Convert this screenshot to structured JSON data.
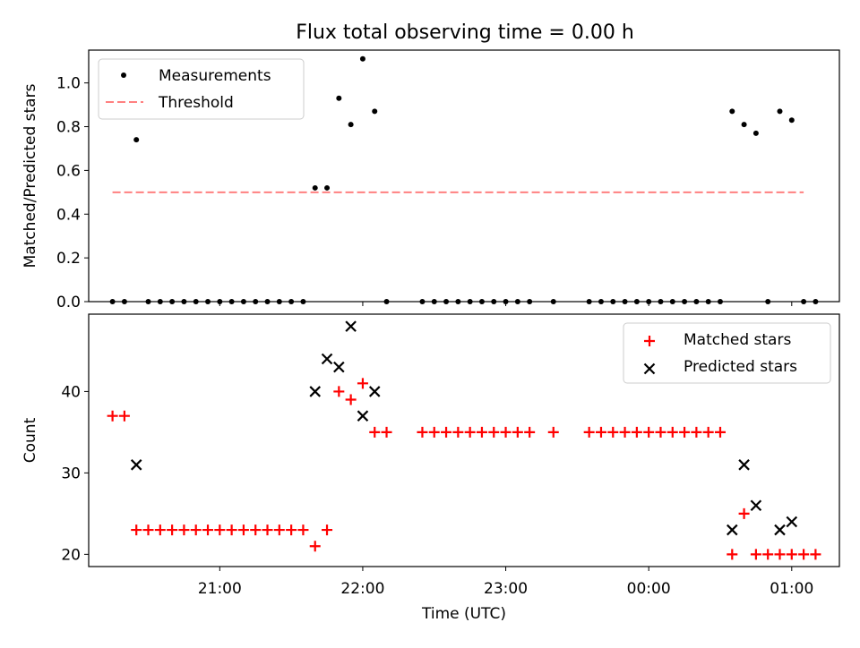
{
  "title": "Flux total observing time = 0.00 h",
  "colors": {
    "measurement": "#000000",
    "threshold": "#ff8080",
    "matched": "#ff0000",
    "predicted": "#000000"
  },
  "chart_data": [
    {
      "type": "scatter",
      "panel": "top",
      "ylabel": "Matched/Predicted stars",
      "xlabel": "",
      "ylim": [
        0,
        1.15
      ],
      "yticks": [
        0.0,
        0.2,
        0.4,
        0.6,
        0.8,
        1.0
      ],
      "ytick_labels": [
        "0.0",
        "0.2",
        "0.4",
        "0.6",
        "0.8",
        "1.0"
      ],
      "legend": {
        "placement": "top-left",
        "entries": [
          "Measurements",
          "Threshold"
        ]
      },
      "threshold": {
        "name": "Threshold",
        "value": 0.5,
        "x_range": [
          "20:15",
          "01:05"
        ],
        "style": "dashed"
      },
      "series": [
        {
          "name": "Measurements",
          "x": [
            "20:15",
            "20:20",
            "20:25",
            "20:30",
            "20:35",
            "20:40",
            "20:45",
            "20:50",
            "20:55",
            "21:00",
            "21:05",
            "21:10",
            "21:15",
            "21:20",
            "21:25",
            "21:30",
            "21:35",
            "21:40",
            "21:45",
            "21:50",
            "21:55",
            "22:00",
            "22:05",
            "22:10",
            "22:25",
            "22:30",
            "22:35",
            "22:40",
            "22:45",
            "22:50",
            "22:55",
            "23:00",
            "23:05",
            "23:10",
            "23:20",
            "23:35",
            "23:40",
            "23:45",
            "23:50",
            "23:55",
            "00:00",
            "00:05",
            "00:10",
            "00:15",
            "00:20",
            "00:25",
            "00:30",
            "00:35",
            "00:40",
            "00:45",
            "00:50",
            "00:55",
            "01:00",
            "01:05",
            "01:10"
          ],
          "values": [
            0,
            0,
            0.74,
            0,
            0,
            0,
            0,
            0,
            0,
            0,
            0,
            0,
            0,
            0,
            0,
            0,
            0,
            0.52,
            0.52,
            0.93,
            0.81,
            1.11,
            0.87,
            0,
            0,
            0,
            0,
            0,
            0,
            0,
            0,
            0,
            0,
            0,
            0,
            0,
            0,
            0,
            0,
            0,
            0,
            0,
            0,
            0,
            0,
            0,
            0,
            0.87,
            0.81,
            0.77,
            0,
            0.87,
            0.83,
            0,
            0
          ]
        }
      ]
    },
    {
      "type": "scatter",
      "panel": "bottom",
      "ylabel": "Count",
      "xlabel": "Time (UTC)",
      "ylim": [
        18.5,
        49.5
      ],
      "yticks": [
        20,
        30,
        40
      ],
      "ytick_labels": [
        "20",
        "30",
        "40"
      ],
      "xticks": [
        "21:00",
        "22:00",
        "23:00",
        "00:00",
        "01:00"
      ],
      "x_range": [
        "20:05",
        "01:20"
      ],
      "legend": {
        "placement": "top-right",
        "entries": [
          "Matched stars",
          "Predicted stars"
        ]
      },
      "series": [
        {
          "name": "Matched stars",
          "marker": "plus",
          "x": [
            "20:15",
            "20:20",
            "20:25",
            "20:30",
            "20:35",
            "20:40",
            "20:45",
            "20:50",
            "20:55",
            "21:00",
            "21:05",
            "21:10",
            "21:15",
            "21:20",
            "21:25",
            "21:30",
            "21:35",
            "21:40",
            "21:45",
            "21:50",
            "21:55",
            "22:00",
            "22:05",
            "22:10",
            "22:25",
            "22:30",
            "22:35",
            "22:40",
            "22:45",
            "22:50",
            "22:55",
            "23:00",
            "23:05",
            "23:10",
            "23:20",
            "23:35",
            "23:40",
            "23:45",
            "23:50",
            "23:55",
            "00:00",
            "00:05",
            "00:10",
            "00:15",
            "00:20",
            "00:25",
            "00:30",
            "00:35",
            "00:40",
            "00:45",
            "00:50",
            "00:55",
            "01:00",
            "01:05",
            "01:10"
          ],
          "values": [
            37,
            37,
            23,
            23,
            23,
            23,
            23,
            23,
            23,
            23,
            23,
            23,
            23,
            23,
            23,
            23,
            23,
            21,
            23,
            40,
            39,
            41,
            35,
            35,
            35,
            35,
            35,
            35,
            35,
            35,
            35,
            35,
            35,
            35,
            35,
            35,
            35,
            35,
            35,
            35,
            35,
            35,
            35,
            35,
            35,
            35,
            35,
            20,
            25,
            20,
            20,
            20,
            20,
            20,
            20
          ]
        },
        {
          "name": "Predicted stars",
          "marker": "x",
          "x": [
            "20:25",
            "21:40",
            "21:45",
            "21:50",
            "21:55",
            "22:00",
            "22:05",
            "00:35",
            "00:40",
            "00:45",
            "00:55",
            "01:00"
          ],
          "values": [
            31,
            40,
            44,
            43,
            48,
            37,
            40,
            23,
            31,
            26,
            23,
            24
          ]
        }
      ]
    }
  ]
}
